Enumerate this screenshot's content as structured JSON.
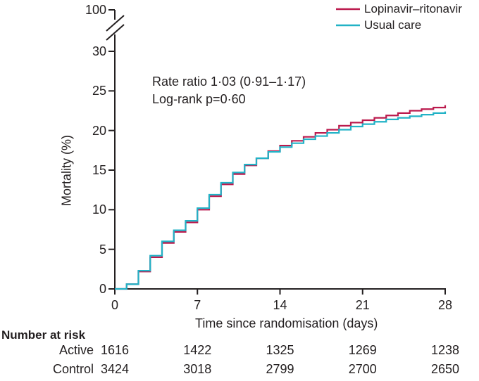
{
  "colors": {
    "active": "#bb1a4d",
    "control": "#22b2c6",
    "axis": "#231f20",
    "text": "#231f20"
  },
  "legend": {
    "items": [
      {
        "label": "Lopinavir–ritonavir",
        "color": "#bb1a4d"
      },
      {
        "label": "Usual care",
        "color": "#22b2c6"
      }
    ]
  },
  "annotation": {
    "line1": "Rate ratio 1·03 (0·91–1·17)",
    "line2": "Log-rank p=0·60"
  },
  "axes": {
    "y_label": "Mortality (%)",
    "x_label": "Time since randomisation (days)",
    "y_ticks": [
      0,
      5,
      10,
      15,
      20,
      25,
      30
    ],
    "y_break_top_tick": "100",
    "x_ticks": [
      0,
      7,
      14,
      21,
      28
    ]
  },
  "chart_data": {
    "type": "line",
    "subtype": "kaplan-meier-step",
    "title": "",
    "xlabel": "Time since randomisation (days)",
    "ylabel": "Mortality (%)",
    "xlim": [
      0,
      28
    ],
    "ylim": [
      0,
      30
    ],
    "y_axis_break": {
      "shown": true,
      "upper_tick": 100
    },
    "x_ticks": [
      0,
      7,
      14,
      21,
      28
    ],
    "y_ticks": [
      0,
      5,
      10,
      15,
      20,
      25,
      30
    ],
    "grid": false,
    "legend_position": "top-right",
    "x": [
      0,
      1,
      2,
      3,
      4,
      5,
      6,
      7,
      8,
      9,
      10,
      11,
      12,
      13,
      14,
      15,
      16,
      17,
      18,
      19,
      20,
      21,
      22,
      23,
      24,
      25,
      26,
      27,
      28
    ],
    "series": [
      {
        "name": "Lopinavir–ritonavir",
        "color": "#bb1a4d",
        "values": [
          0,
          0.6,
          2.2,
          4.0,
          5.8,
          7.2,
          8.4,
          10.0,
          11.7,
          13.2,
          14.5,
          15.6,
          16.5,
          17.4,
          18.1,
          18.7,
          19.2,
          19.7,
          20.1,
          20.6,
          21.0,
          21.3,
          21.6,
          21.9,
          22.2,
          22.5,
          22.7,
          22.9,
          23.2
        ]
      },
      {
        "name": "Usual care",
        "color": "#22b2c6",
        "values": [
          0,
          0.6,
          2.3,
          4.2,
          6.0,
          7.4,
          8.6,
          10.2,
          11.9,
          13.4,
          14.7,
          15.7,
          16.5,
          17.3,
          17.9,
          18.4,
          18.9,
          19.3,
          19.7,
          20.1,
          20.5,
          20.8,
          21.1,
          21.4,
          21.6,
          21.8,
          22.0,
          22.2,
          22.4
        ]
      }
    ],
    "annotations": [
      "Rate ratio 1·03 (0·91–1·17)",
      "Log-rank p=0·60"
    ]
  },
  "number_at_risk": {
    "title": "Number at risk",
    "columns": [
      0,
      7,
      14,
      21,
      28
    ],
    "rows": [
      {
        "label": "Active",
        "values": [
          "1616",
          "1422",
          "1325",
          "1269",
          "1238"
        ]
      },
      {
        "label": "Control",
        "values": [
          "3424",
          "3018",
          "2799",
          "2700",
          "2650"
        ]
      }
    ]
  }
}
